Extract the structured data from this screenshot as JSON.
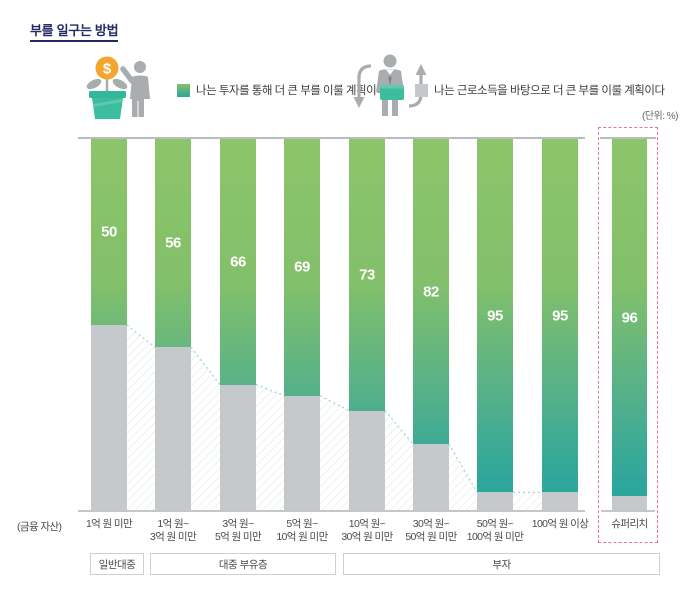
{
  "title": "부를 일구는 방법",
  "unit_label": "(단위: %)",
  "axis_left_label": "(금융 자산)",
  "legend": {
    "invest": {
      "label": "나는 투자를 통해 더 큰 부를 이룰 계획이다",
      "icon": "money-plant-person-icon",
      "color_top": "#85c167",
      "color_bottom": "#2ba59c"
    },
    "labor": {
      "label": "나는 근로소득을 바탕으로 더 큰 부를 이룰 계획이다",
      "icon": "person-briefcase-arrows-icon",
      "color": "#c5c8ca"
    }
  },
  "chart_data": {
    "type": "bar",
    "stacked": "100%",
    "title": "부를 일구는 방법",
    "unit": "(단위: %)",
    "xlabel": "(금융 자산)",
    "ylim": [
      0,
      100
    ],
    "grid": false,
    "legend_position": "top",
    "categories": [
      "1억 원 미만",
      "1억 원~ 3억 원 미만",
      "3억 원~ 5억 원 미만",
      "5억 원~ 10억 원 미만",
      "10억 원~ 30억 원 미만",
      "30억 원~ 50억 원 미만",
      "50억 원~ 100억 원 미만",
      "100억 원 이상",
      "슈퍼리치"
    ],
    "category_lines": [
      [
        "1억 원 미만"
      ],
      [
        "1억 원~",
        "3억 원 미만"
      ],
      [
        "3억 원~",
        "5억 원 미만"
      ],
      [
        "5억 원~",
        "10억 원 미만"
      ],
      [
        "10억 원~",
        "30억 원 미만"
      ],
      [
        "30억 원~",
        "50억 원 미만"
      ],
      [
        "50억 원~",
        "100억 원 미만"
      ],
      [
        "100억 원 이상"
      ],
      [
        "슈퍼리치"
      ]
    ],
    "series": [
      {
        "name": "나는 투자를 통해 더 큰 부를 이룰 계획이다",
        "values": [
          50,
          56,
          66,
          69,
          73,
          82,
          95,
          95,
          96
        ]
      },
      {
        "name": "나는 근로소득을 바탕으로 더 큰 부를 이룰 계획이다",
        "values": [
          50,
          44,
          34,
          31,
          27,
          18,
          5,
          5,
          4
        ]
      }
    ],
    "highlight_category": "슈퍼리치",
    "groups": [
      {
        "label": "일반대중",
        "span": [
          0,
          0
        ]
      },
      {
        "label": "대중 부유층",
        "span": [
          1,
          3
        ]
      },
      {
        "label": "부자",
        "span": [
          4,
          8
        ]
      }
    ],
    "colors": {
      "invest_gradient_top": "#8cc46a",
      "invest_gradient_bottom": "#2aa59d",
      "labor_gray": "#c6c9cb",
      "connector_dotted": "#9fd9cb",
      "highlight_border": "#f4708c",
      "axis_line": "#b9bdbf",
      "value_text": "#ffffff"
    }
  }
}
